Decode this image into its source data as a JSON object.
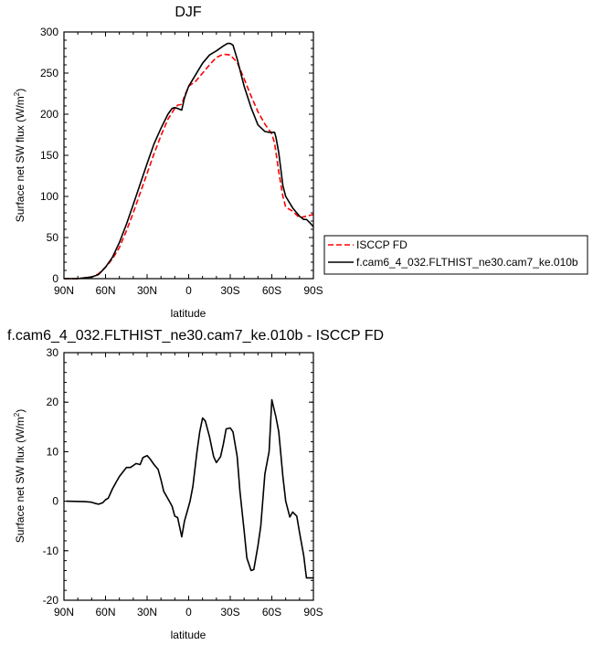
{
  "chart_data": [
    {
      "type": "line",
      "title": "DJF",
      "xlabel": "latitude",
      "ylabel": "Surface net SW flux (W/m",
      "ylabel_sup": "2",
      "ylabel_end": ")",
      "xlim": [
        90,
        -90
      ],
      "ylim": [
        0,
        300
      ],
      "xticks": [
        90,
        60,
        30,
        0,
        -30,
        -60,
        -90
      ],
      "xtick_labels": [
        "90N",
        "60N",
        "30N",
        "0",
        "30S",
        "60S",
        "90S"
      ],
      "yticks": [
        0,
        50,
        100,
        150,
        200,
        250,
        300
      ],
      "ytick_labels": [
        "0",
        "50",
        "100",
        "150",
        "200",
        "250",
        "300"
      ],
      "legend_position": "right",
      "series": [
        {
          "name": "ISCCP FD",
          "color": "#ff0000",
          "style": "dashed",
          "x": [
            90,
            80,
            70,
            65,
            60,
            55,
            50,
            45,
            40,
            35,
            30,
            25,
            20,
            15,
            10,
            8,
            5,
            3,
            0,
            -5,
            -10,
            -15,
            -20,
            -25,
            -30,
            -35,
            -40,
            -45,
            -50,
            -55,
            -60,
            -62,
            -65,
            -68,
            -70,
            -75,
            -80,
            -85,
            -90
          ],
          "values": [
            0,
            0,
            2,
            6,
            14,
            24,
            38,
            58,
            80,
            104,
            128,
            152,
            174,
            194,
            207,
            211,
            212,
            222,
            234,
            240,
            250,
            260,
            269,
            273,
            272,
            263,
            243,
            222,
            203,
            188,
            176,
            165,
            130,
            100,
            87,
            82,
            74,
            76,
            78
          ]
        },
        {
          "name": "f.cam6_4_032.FLTHIST_ne30.cam7_ke.010b",
          "color": "#000000",
          "style": "solid",
          "x": [
            90,
            80,
            70,
            65,
            60,
            55,
            50,
            45,
            40,
            35,
            30,
            25,
            20,
            15,
            12,
            10,
            8,
            5,
            3,
            0,
            -5,
            -10,
            -15,
            -20,
            -25,
            -28,
            -30,
            -32,
            -35,
            -40,
            -45,
            -50,
            -55,
            -58,
            -60,
            -62,
            -63,
            -65,
            -68,
            -70,
            -75,
            -80,
            -83,
            -85,
            -88,
            -90
          ],
          "values": [
            0,
            0,
            2,
            5,
            14,
            26,
            44,
            66,
            90,
            115,
            140,
            164,
            183,
            200,
            207,
            208,
            207,
            205,
            220,
            234,
            248,
            262,
            272,
            277,
            283,
            286,
            286,
            284,
            267,
            234,
            208,
            187,
            179,
            178,
            178,
            178,
            172,
            153,
            113,
            100,
            86,
            76,
            72,
            72,
            67,
            63
          ]
        }
      ]
    },
    {
      "type": "line",
      "title": "f.cam6_4_032.FLTHIST_ne30.cam7_ke.010b - ISCCP FD",
      "xlabel": "latitude",
      "ylabel": "Surface net SW flux (W/m",
      "ylabel_sup": "2",
      "ylabel_end": ")",
      "xlim": [
        90,
        -90
      ],
      "ylim": [
        -20,
        30
      ],
      "xticks": [
        90,
        60,
        30,
        0,
        -30,
        -60,
        -90
      ],
      "xtick_labels": [
        "90N",
        "60N",
        "30N",
        "0",
        "30S",
        "60S",
        "90S"
      ],
      "yticks": [
        -20,
        -10,
        0,
        10,
        20,
        30
      ],
      "ytick_labels": [
        "-20",
        "-10",
        "0",
        "10",
        "20",
        "30"
      ],
      "series": [
        {
          "color": "#000000",
          "style": "solid",
          "x": [
            88,
            75,
            70,
            68,
            65,
            62,
            60,
            58,
            55,
            52,
            50,
            45,
            42,
            40,
            38,
            35,
            33,
            30,
            28,
            25,
            22,
            20,
            18,
            15,
            12,
            10,
            8,
            5,
            3,
            1,
            -1,
            -3,
            -6,
            -8,
            -10,
            -12,
            -15,
            -18,
            -20,
            -23,
            -25,
            -27,
            -30,
            -32,
            -35,
            -37,
            -40,
            -42,
            -45,
            -47,
            -50,
            -52,
            -55,
            -58,
            -60,
            -63,
            -65,
            -68,
            -70,
            -73,
            -75,
            -78,
            -80,
            -83,
            -85,
            -88,
            -90
          ],
          "values": [
            0,
            -0.1,
            -0.2,
            -0.4,
            -0.6,
            -0.3,
            0.3,
            0.6,
            2.5,
            4,
            5,
            6.8,
            6.8,
            7.2,
            7.6,
            7.4,
            8.8,
            9.2,
            8.6,
            7.4,
            6.4,
            4.3,
            2,
            0.5,
            -1,
            -3,
            -3.3,
            -7.2,
            -4,
            -2,
            0,
            3,
            10,
            14,
            16.8,
            16.2,
            13,
            9,
            7.8,
            9,
            11.5,
            14.6,
            14.8,
            14,
            9,
            2,
            -6,
            -11.5,
            -14,
            -13.8,
            -9,
            -5,
            5.5,
            10,
            20.5,
            17,
            14,
            5,
            0,
            -3.2,
            -2.2,
            -3,
            -6.3,
            -11,
            -15.5,
            -15.5,
            -15.5
          ]
        }
      ]
    }
  ]
}
